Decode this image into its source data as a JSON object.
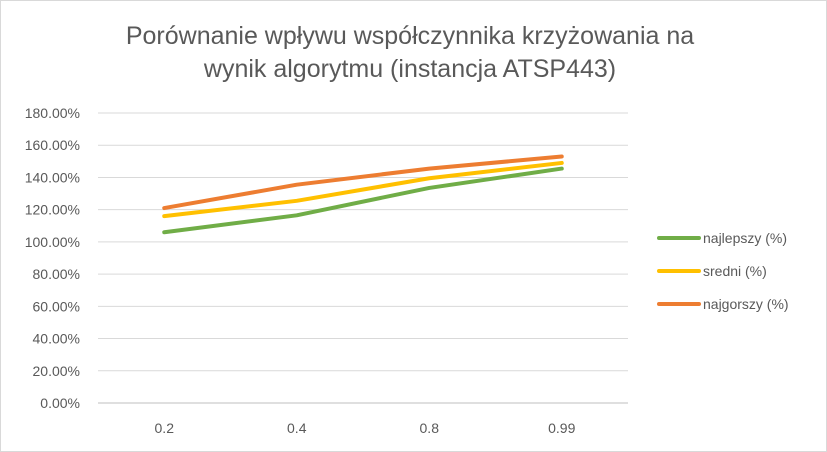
{
  "chart_data": {
    "type": "line",
    "title": "Porównanie wpływu współczynnika krzyżowania na wynik algorytmu (instancja ATSP443)",
    "title_lines": [
      "Porównanie wpływu współczynnika krzyżowania na",
      "wynik algorytmu (instancja ATSP443)"
    ],
    "xlabel": "",
    "ylabel": "",
    "categories": [
      "0.2",
      "0.4",
      "0.8",
      "0.99"
    ],
    "y_ticks": [
      "0.00%",
      "20.00%",
      "40.00%",
      "60.00%",
      "80.00%",
      "100.00%",
      "120.00%",
      "140.00%",
      "160.00%",
      "180.00%"
    ],
    "ylim": [
      0,
      180
    ],
    "grid": true,
    "legend_position": "right",
    "series": [
      {
        "name": "najlepszy (%)",
        "color": "#70ad47",
        "values": [
          106,
          116.5,
          133.5,
          145.5
        ]
      },
      {
        "name": "sredni (%)",
        "color": "#ffc000",
        "values": [
          116,
          125.5,
          139.5,
          149
        ]
      },
      {
        "name": "najgorszy (%)",
        "color": "#ed7d31",
        "values": [
          121,
          135.5,
          145.5,
          153
        ]
      }
    ]
  }
}
